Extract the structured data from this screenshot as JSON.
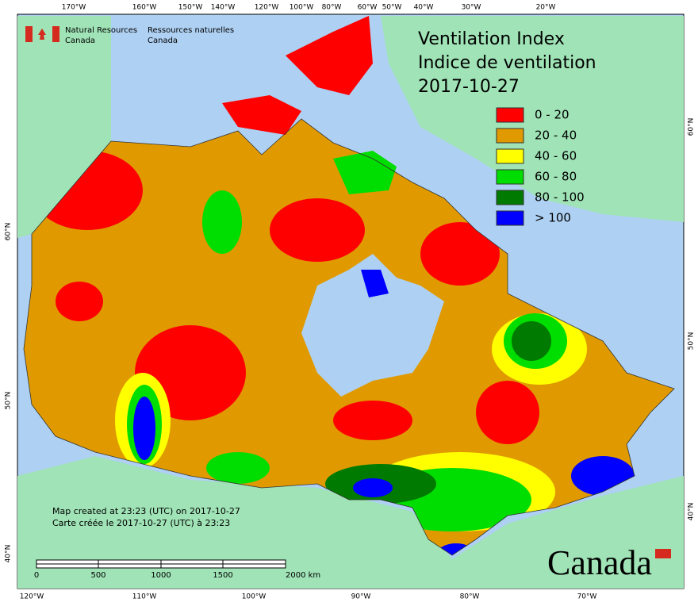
{
  "agency": {
    "english": [
      "Natural Resources",
      "Canada"
    ],
    "french": [
      "Ressources naturelles",
      "Canada"
    ]
  },
  "title": [
    "Ventilation Index",
    "Indice de ventilation",
    "2017-10-27"
  ],
  "legend": [
    {
      "label": "0 - 20",
      "color": "#ff0000"
    },
    {
      "label": "20 - 40",
      "color": "#e09a00"
    },
    {
      "label": "40 - 60",
      "color": "#ffff00"
    },
    {
      "label": "60 - 80",
      "color": "#00dd00"
    },
    {
      "label": "80 - 100",
      "color": "#007a00"
    },
    {
      "label": "> 100",
      "color": "#0000ff"
    }
  ],
  "graticule": {
    "top": [
      "170°W",
      "160°W",
      "150°W",
      "140°W",
      "120°W",
      "100°W",
      "80°W",
      "60°W",
      "50°W",
      "40°W",
      "30°W",
      "20°W"
    ],
    "bottom": [
      "120°W",
      "110°W",
      "100°W",
      "90°W",
      "80°W",
      "70°W"
    ],
    "left": [
      "60°N",
      "50°N",
      "40°N"
    ],
    "right": [
      "60°N",
      "50°N",
      "40°N"
    ]
  },
  "credits": [
    "Map created at 23:23 (UTC) on 2017-10-27",
    "Carte créée le 2017-10-27 (UTC) à 23:23"
  ],
  "scale_bar": [
    "0",
    "500",
    "1000",
    "1500",
    "2000 km"
  ],
  "wordmark": "Canada"
}
